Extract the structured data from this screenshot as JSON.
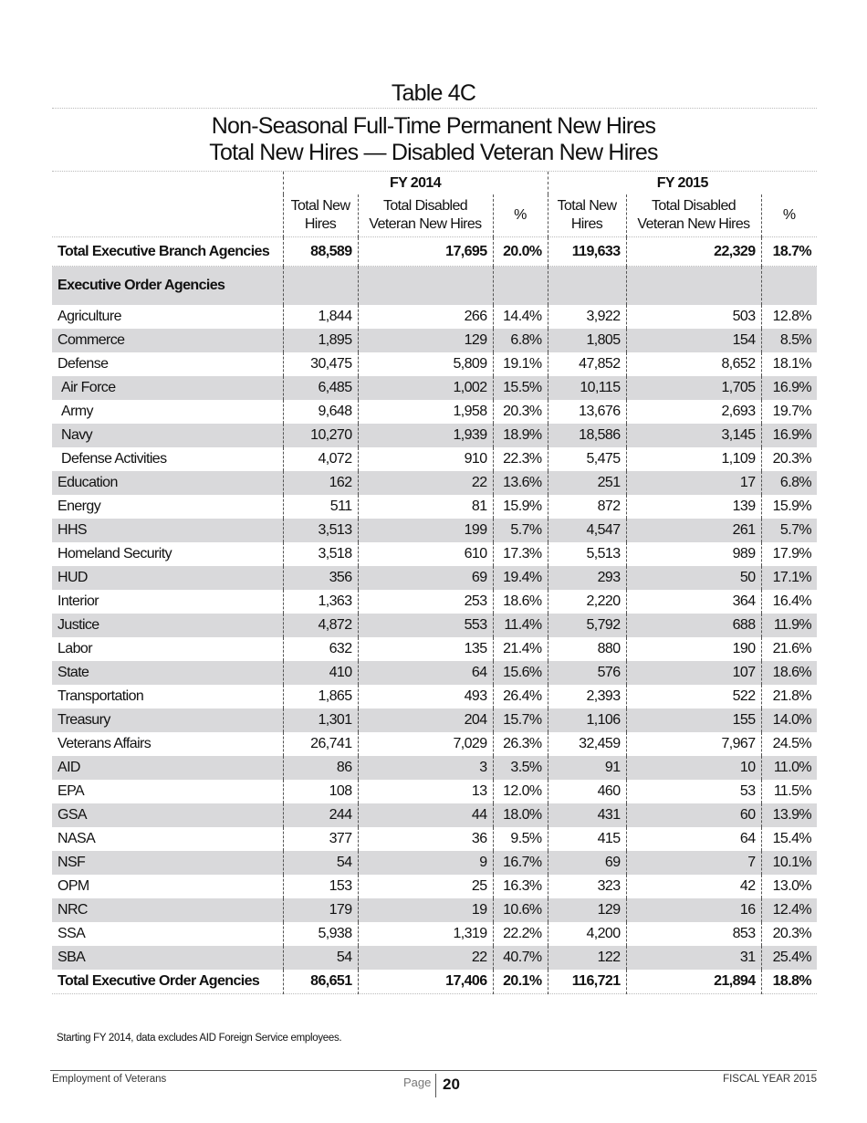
{
  "title": "Table 4C",
  "subtitle_line1": "Non-Seasonal Full-Time Permanent New Hires",
  "subtitle_line2": "Total New Hires — Disabled Veteran New Hires",
  "table": {
    "groups": [
      "FY 2014",
      "FY 2015"
    ],
    "columns": [
      "Total New Hires",
      "Total Disabled Veteran New Hires",
      "%",
      "Total New Hires",
      "Total Disabled Veteran New Hires",
      "%"
    ],
    "total_branch": {
      "label": "Total Executive Branch Agencies",
      "values": [
        "88,589",
        "17,695",
        "20.0%",
        "119,633",
        "22,329",
        "18.7%"
      ]
    },
    "section_label": "Executive Order Agencies",
    "rows": [
      {
        "label": "Agriculture",
        "values": [
          "1,844",
          "266",
          "14.4%",
          "3,922",
          "503",
          "12.8%"
        ]
      },
      {
        "label": "Commerce",
        "values": [
          "1,895",
          "129",
          "6.8%",
          "1,805",
          "154",
          "8.5%"
        ]
      },
      {
        "label": "Defense",
        "values": [
          "30,475",
          "5,809",
          "19.1%",
          "47,852",
          "8,652",
          "18.1%"
        ]
      },
      {
        "label": "Air Force",
        "indent": true,
        "values": [
          "6,485",
          "1,002",
          "15.5%",
          "10,115",
          "1,705",
          "16.9%"
        ]
      },
      {
        "label": "Army",
        "indent": true,
        "values": [
          "9,648",
          "1,958",
          "20.3%",
          "13,676",
          "2,693",
          "19.7%"
        ]
      },
      {
        "label": "Navy",
        "indent": true,
        "values": [
          "10,270",
          "1,939",
          "18.9%",
          "18,586",
          "3,145",
          "16.9%"
        ]
      },
      {
        "label": "Defense Activities",
        "indent": true,
        "values": [
          "4,072",
          "910",
          "22.3%",
          "5,475",
          "1,109",
          "20.3%"
        ]
      },
      {
        "label": "Education",
        "values": [
          "162",
          "22",
          "13.6%",
          "251",
          "17",
          "6.8%"
        ]
      },
      {
        "label": "Energy",
        "values": [
          "511",
          "81",
          "15.9%",
          "872",
          "139",
          "15.9%"
        ]
      },
      {
        "label": "HHS",
        "values": [
          "3,513",
          "199",
          "5.7%",
          "4,547",
          "261",
          "5.7%"
        ]
      },
      {
        "label": "Homeland Security",
        "values": [
          "3,518",
          "610",
          "17.3%",
          "5,513",
          "989",
          "17.9%"
        ]
      },
      {
        "label": "HUD",
        "values": [
          "356",
          "69",
          "19.4%",
          "293",
          "50",
          "17.1%"
        ]
      },
      {
        "label": "Interior",
        "values": [
          "1,363",
          "253",
          "18.6%",
          "2,220",
          "364",
          "16.4%"
        ]
      },
      {
        "label": "Justice",
        "values": [
          "4,872",
          "553",
          "11.4%",
          "5,792",
          "688",
          "11.9%"
        ]
      },
      {
        "label": "Labor",
        "values": [
          "632",
          "135",
          "21.4%",
          "880",
          "190",
          "21.6%"
        ]
      },
      {
        "label": "State",
        "values": [
          "410",
          "64",
          "15.6%",
          "576",
          "107",
          "18.6%"
        ]
      },
      {
        "label": "Transportation",
        "values": [
          "1,865",
          "493",
          "26.4%",
          "2,393",
          "522",
          "21.8%"
        ]
      },
      {
        "label": "Treasury",
        "values": [
          "1,301",
          "204",
          "15.7%",
          "1,106",
          "155",
          "14.0%"
        ]
      },
      {
        "label": "Veterans Affairs",
        "values": [
          "26,741",
          "7,029",
          "26.3%",
          "32,459",
          "7,967",
          "24.5%"
        ]
      },
      {
        "label": "AID",
        "values": [
          "86",
          "3",
          "3.5%",
          "91",
          "10",
          "11.0%"
        ]
      },
      {
        "label": "EPA",
        "values": [
          "108",
          "13",
          "12.0%",
          "460",
          "53",
          "11.5%"
        ]
      },
      {
        "label": "GSA",
        "values": [
          "244",
          "44",
          "18.0%",
          "431",
          "60",
          "13.9%"
        ]
      },
      {
        "label": "NASA",
        "values": [
          "377",
          "36",
          "9.5%",
          "415",
          "64",
          "15.4%"
        ]
      },
      {
        "label": "NSF",
        "values": [
          "54",
          "9",
          "16.7%",
          "69",
          "7",
          "10.1%"
        ]
      },
      {
        "label": "OPM",
        "values": [
          "153",
          "25",
          "16.3%",
          "323",
          "42",
          "13.0%"
        ]
      },
      {
        "label": "NRC",
        "values": [
          "179",
          "19",
          "10.6%",
          "129",
          "16",
          "12.4%"
        ]
      },
      {
        "label": "SSA",
        "values": [
          "5,938",
          "1,319",
          "22.2%",
          "4,200",
          "853",
          "20.3%"
        ]
      },
      {
        "label": "SBA",
        "values": [
          "54",
          "22",
          "40.7%",
          "122",
          "31",
          "25.4%"
        ]
      }
    ],
    "total_eo": {
      "label": "Total Executive Order Agencies",
      "values": [
        "86,651",
        "17,406",
        "20.1%",
        "116,721",
        "21,894",
        "18.8%"
      ]
    }
  },
  "note": "Starting FY 2014, data excludes AID Foreign Service employees.",
  "footer": {
    "left": "Employment of Veterans",
    "page_label": "Page",
    "page_number": "20",
    "right": "FISCAL YEAR 2015"
  },
  "colors": {
    "row_shade": "#d9d9db"
  }
}
